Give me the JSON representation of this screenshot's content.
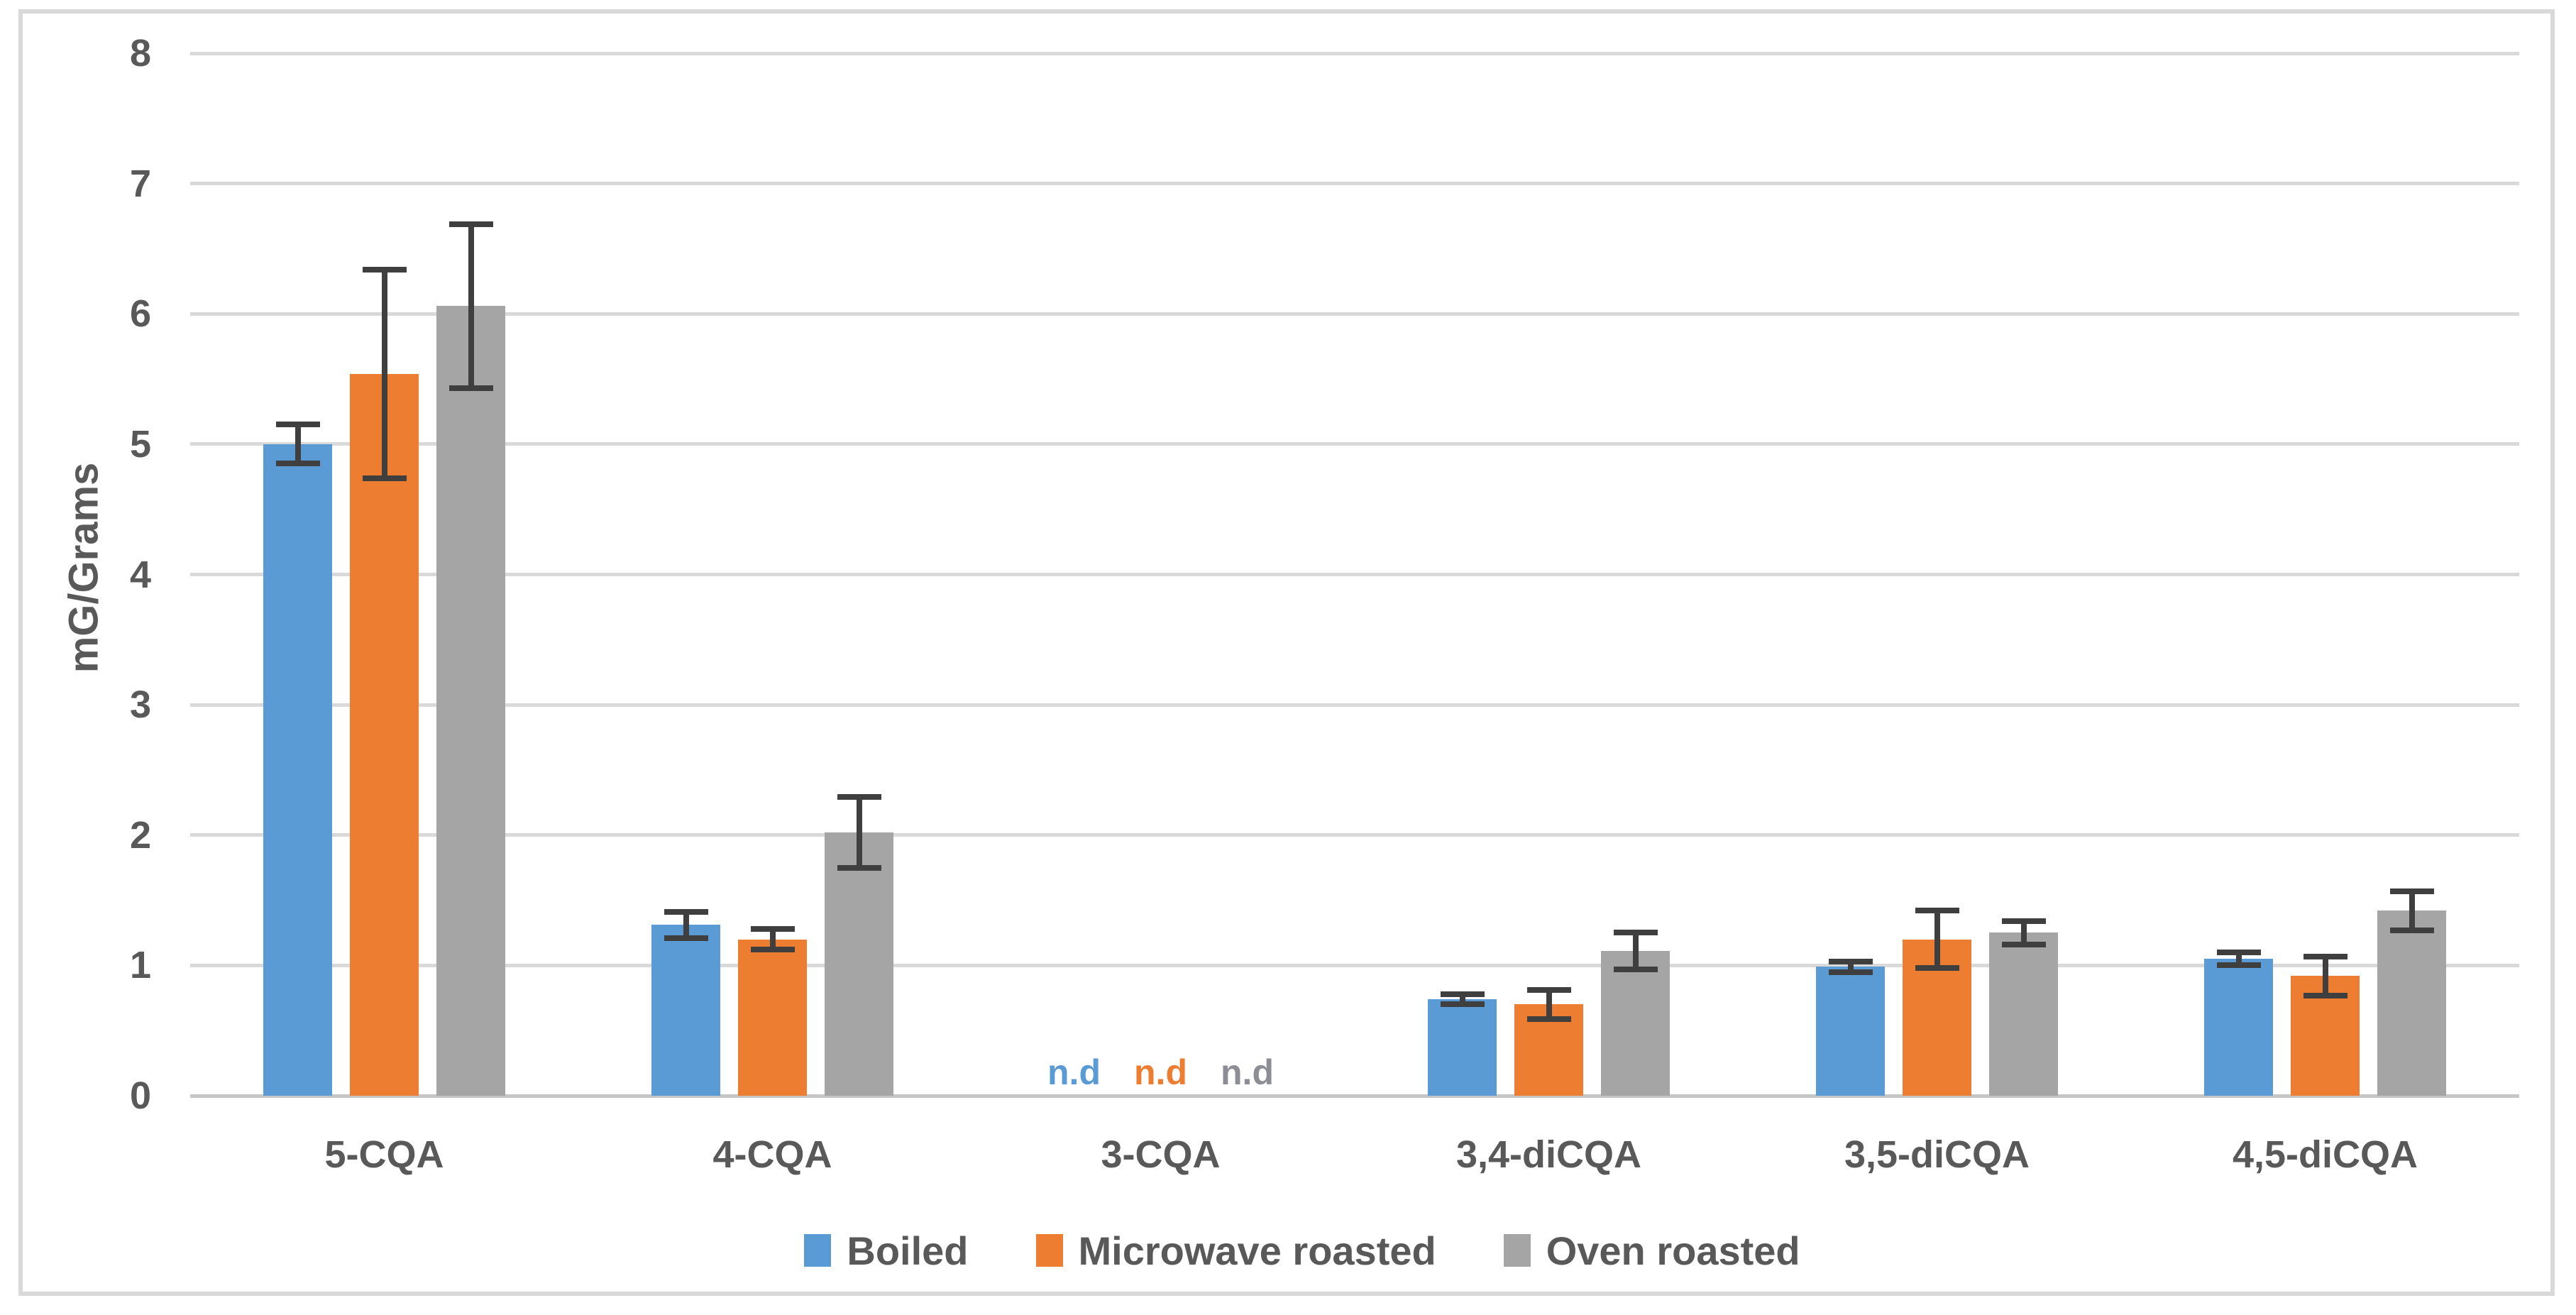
{
  "chart_data": {
    "type": "bar",
    "title": "",
    "xlabel": "",
    "ylabel": "mG/Grams",
    "yaxis": {
      "min": 0,
      "max": 8,
      "step": 1
    },
    "ylim": [
      0,
      8
    ],
    "grid": true,
    "legend_position": "bottom",
    "categories": [
      "5-CQA",
      "4-CQA",
      "3-CQA",
      "3,4-diCQA",
      "3,5-diCQA",
      "4,5-diCQA"
    ],
    "series": [
      {
        "name": "Boiled",
        "color": "#5B9BD5",
        "nd_color": "#5B9BD5",
        "values": [
          5.0,
          1.31,
          null,
          0.74,
          0.99,
          1.05
        ],
        "errors": [
          0.15,
          0.1,
          null,
          0.04,
          0.04,
          0.05
        ]
      },
      {
        "name": "Microwave roasted",
        "color": "#ED7D31",
        "nd_color": "#ED7D31",
        "values": [
          5.54,
          1.2,
          null,
          0.7,
          1.2,
          0.92
        ],
        "errors": [
          0.8,
          0.08,
          null,
          0.11,
          0.22,
          0.15
        ]
      },
      {
        "name": "Oven roasted",
        "color": "#A5A5A5",
        "nd_color": "#8D8D96",
        "values": [
          6.06,
          2.02,
          null,
          1.11,
          1.25,
          1.42
        ],
        "errors": [
          0.63,
          0.27,
          null,
          0.14,
          0.09,
          0.15
        ]
      }
    ],
    "not_detected_label": "n.d",
    "colors": {
      "text": "#595959",
      "gridline": "#D9D9D9",
      "axis_line": "#C6C6C6",
      "error_bar": "#3F3F3F",
      "border": "#D9D9D9"
    }
  }
}
